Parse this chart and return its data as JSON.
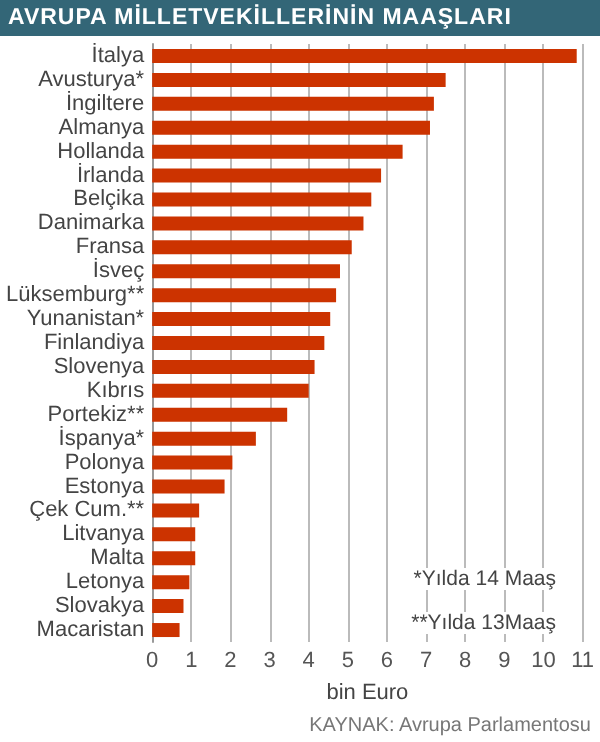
{
  "chart_data": {
    "type": "bar",
    "orientation": "horizontal",
    "title": "AVRUPA MİLLETVEKİLLERİNİN MAAŞLARI",
    "xlabel": "bin Euro",
    "categories": [
      "İtalya",
      "Avusturya*",
      "İngiltere",
      "Almanya",
      "Hollanda",
      "İrlanda",
      "Belçika",
      "Danimarka",
      "Fransa",
      "İsveç",
      "Lüksemburg**",
      "Yunanistan*",
      "Finlandiya",
      "Slovenya",
      "Kıbrıs",
      "Portekiz**",
      "İspanya*",
      "Polonya",
      "Estonya",
      "Çek Cum.**",
      "Litvanya",
      "Malta",
      "Letonya",
      "Slovakya",
      "Macaristan"
    ],
    "values": [
      10.85,
      7.5,
      7.2,
      7.1,
      6.4,
      5.85,
      5.6,
      5.4,
      5.1,
      4.8,
      4.7,
      4.55,
      4.4,
      4.15,
      4.0,
      3.45,
      2.65,
      2.05,
      1.85,
      1.2,
      1.1,
      1.1,
      0.95,
      0.8,
      0.7
    ],
    "color": "#cc3300",
    "xlim": [
      0,
      11
    ],
    "xticks": [
      0,
      1,
      2,
      3,
      4,
      5,
      6,
      7,
      8,
      9,
      10,
      11
    ],
    "grid": "x",
    "annotations": [
      "*Yılda 14 Maaş",
      "**Yılda 13Maaş",
      "KAYNAK: Avrupa Parlamentosu"
    ]
  }
}
